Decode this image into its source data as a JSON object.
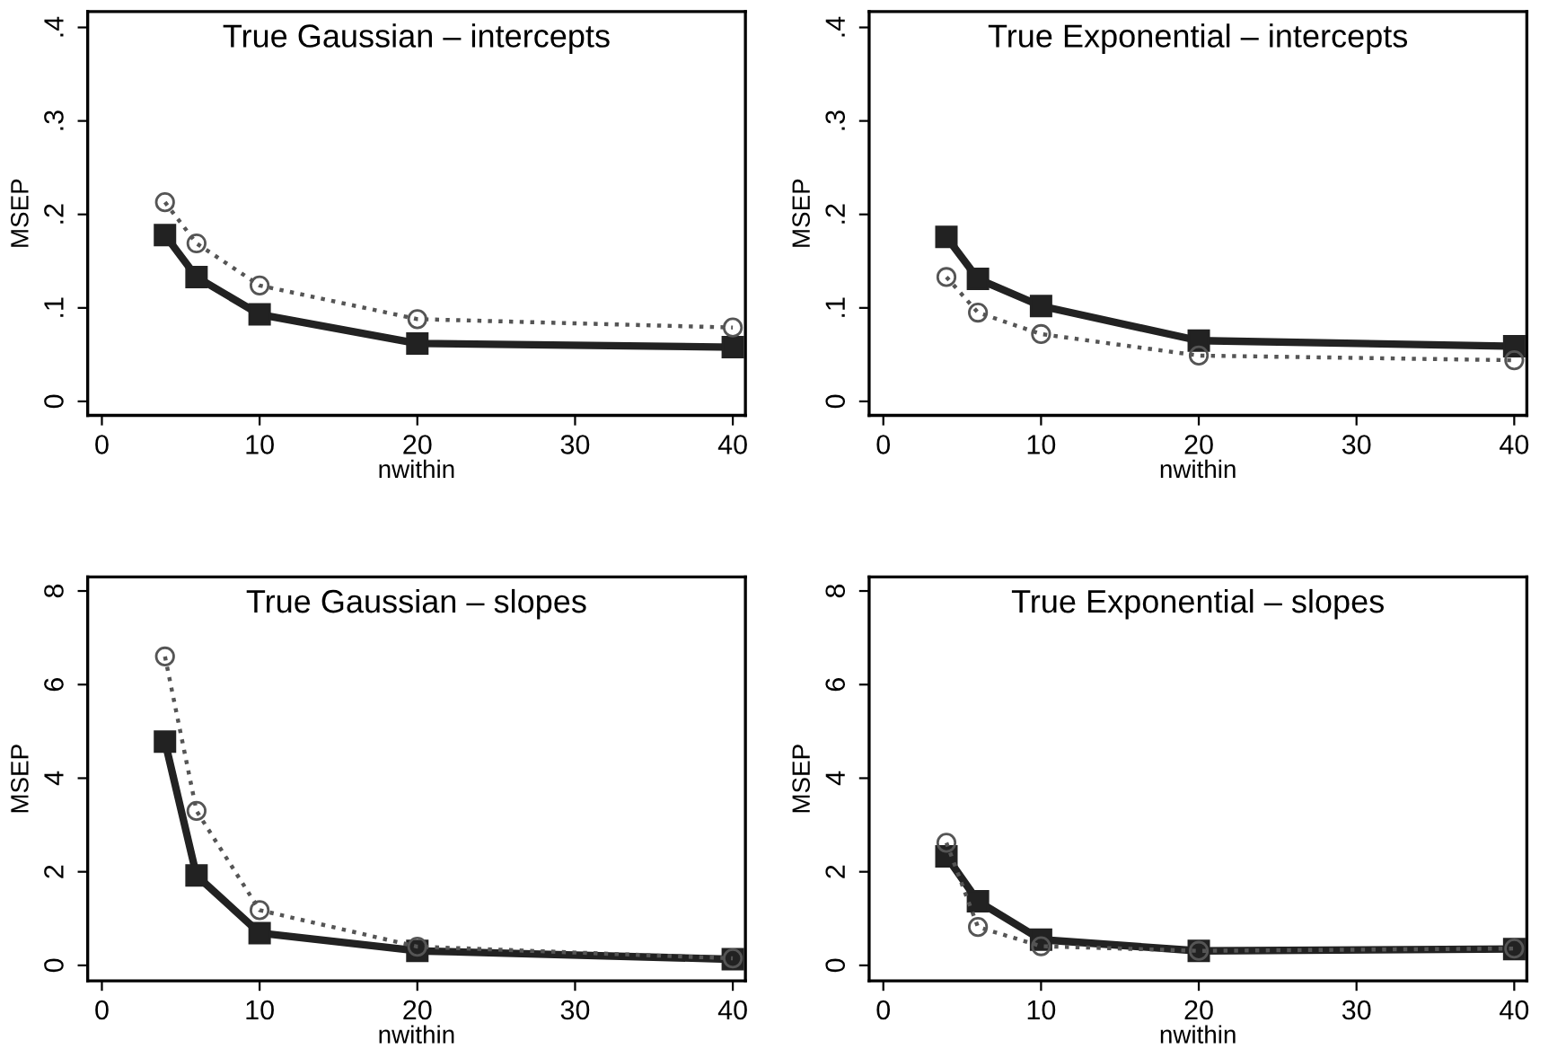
{
  "chart_data": [
    {
      "type": "line",
      "title": "True Gaussian – intercepts",
      "xlabel": "nwithin",
      "ylabel": "MSEP",
      "x": [
        4,
        6,
        10,
        20,
        40
      ],
      "xlim": [
        -0.9,
        40.8
      ],
      "xticks": [
        0,
        10,
        20,
        30,
        40
      ],
      "ylim": [
        -0.015,
        0.417
      ],
      "yticks": [
        {
          "value": 0,
          "label": "0"
        },
        {
          "value": 0.1,
          "label": ".1"
        },
        {
          "value": 0.2,
          "label": ".2"
        },
        {
          "value": 0.3,
          "label": ".3"
        },
        {
          "value": 0.4,
          "label": ".4"
        }
      ],
      "grid": false,
      "legend": false,
      "series": [
        {
          "color": "#222222",
          "marker": "square",
          "line_style": "solid",
          "values": [
            0.178,
            0.133,
            0.093,
            0.062,
            0.058
          ]
        },
        {
          "color": "#555555",
          "marker": "circle",
          "line_style": "dotted",
          "values": [
            0.213,
            0.169,
            0.124,
            0.088,
            0.079
          ]
        }
      ]
    },
    {
      "type": "line",
      "title": "True Exponential – intercepts",
      "xlabel": "nwithin",
      "ylabel": "MSEP",
      "x": [
        4,
        6,
        10,
        20,
        40
      ],
      "xlim": [
        -0.9,
        40.8
      ],
      "xticks": [
        0,
        10,
        20,
        30,
        40
      ],
      "ylim": [
        -0.015,
        0.417
      ],
      "yticks": [
        {
          "value": 0,
          "label": "0"
        },
        {
          "value": 0.1,
          "label": ".1"
        },
        {
          "value": 0.2,
          "label": ".2"
        },
        {
          "value": 0.3,
          "label": ".3"
        },
        {
          "value": 0.4,
          "label": ".4"
        }
      ],
      "grid": false,
      "legend": false,
      "series": [
        {
          "color": "#222222",
          "marker": "square",
          "line_style": "solid",
          "values": [
            0.176,
            0.131,
            0.102,
            0.065,
            0.059
          ]
        },
        {
          "color": "#555555",
          "marker": "circle",
          "line_style": "dotted",
          "values": [
            0.133,
            0.095,
            0.072,
            0.049,
            0.044
          ]
        }
      ]
    },
    {
      "type": "line",
      "title": "True Gaussian – slopes",
      "xlabel": "nwithin",
      "ylabel": "MSEP",
      "x": [
        4,
        6,
        10,
        20,
        40
      ],
      "xlim": [
        -0.9,
        40.8
      ],
      "xticks": [
        0,
        10,
        20,
        30,
        40
      ],
      "ylim": [
        -0.33,
        8.3
      ],
      "yticks": [
        0,
        2,
        4,
        6,
        8
      ],
      "grid": false,
      "legend": false,
      "series": [
        {
          "color": "#222222",
          "marker": "square",
          "line_style": "solid",
          "values": [
            4.78,
            1.92,
            0.69,
            0.31,
            0.13
          ]
        },
        {
          "color": "#555555",
          "marker": "circle",
          "line_style": "dotted",
          "values": [
            6.6,
            3.3,
            1.18,
            0.4,
            0.15
          ]
        }
      ]
    },
    {
      "type": "line",
      "title": "True Exponential – slopes",
      "xlabel": "nwithin",
      "ylabel": "MSEP",
      "x": [
        4,
        6,
        10,
        20,
        40
      ],
      "xlim": [
        -0.9,
        40.8
      ],
      "xticks": [
        0,
        10,
        20,
        30,
        40
      ],
      "ylim": [
        -0.33,
        8.3
      ],
      "yticks": [
        0,
        2,
        4,
        6,
        8
      ],
      "grid": false,
      "legend": false,
      "series": [
        {
          "color": "#222222",
          "marker": "square",
          "line_style": "solid",
          "values": [
            2.33,
            1.37,
            0.55,
            0.31,
            0.35
          ]
        },
        {
          "color": "#555555",
          "marker": "circle",
          "line_style": "dotted",
          "values": [
            2.62,
            0.82,
            0.41,
            0.31,
            0.36
          ]
        }
      ]
    }
  ]
}
